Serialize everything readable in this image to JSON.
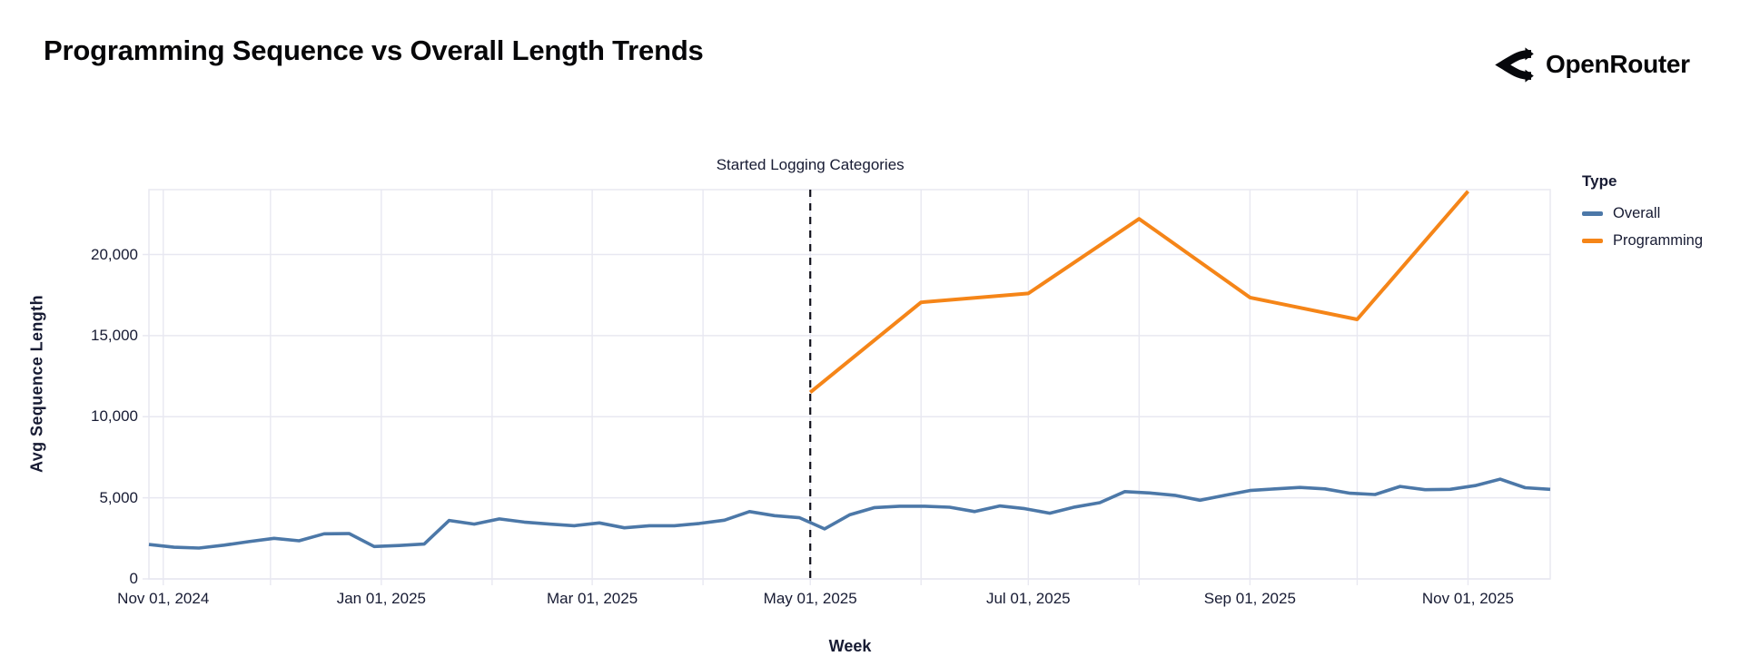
{
  "header": {
    "title": "Programming Sequence vs Overall Length Trends",
    "brand": "OpenRouter"
  },
  "chart_data": {
    "type": "line",
    "title": "Programming Sequence vs Overall Length Trends",
    "xlabel": "Week",
    "ylabel": "Avg Sequence Length",
    "ylim": [
      0,
      24000
    ],
    "x_domain": [
      "2024-10-28",
      "2025-11-24"
    ],
    "grid": true,
    "legend": {
      "title": "Type",
      "position": "top-right"
    },
    "annotation": {
      "text": "Started Logging Categories",
      "date": "2025-05-01"
    },
    "colors": {
      "grid": "#E8E8F1",
      "axis_text": "#171B33",
      "rule": "#12121C",
      "overall": "#4C78A8",
      "programming": "#F58518"
    },
    "y_ticks": [
      {
        "value": 0,
        "label": "0"
      },
      {
        "value": 5000,
        "label": "5,000"
      },
      {
        "value": 10000,
        "label": "10,000"
      },
      {
        "value": 15000,
        "label": "15,000"
      },
      {
        "value": 20000,
        "label": "20,000"
      }
    ],
    "x_ticks": [
      {
        "date": "2024-11-01",
        "label": "Nov 01, 2024"
      },
      {
        "date": "2025-01-01",
        "label": "Jan 01, 2025"
      },
      {
        "date": "2025-03-01",
        "label": "Mar 01, 2025"
      },
      {
        "date": "2025-05-01",
        "label": "May 01, 2025"
      },
      {
        "date": "2025-07-01",
        "label": "Jul 01, 2025"
      },
      {
        "date": "2025-09-01",
        "label": "Sep 01, 2025"
      },
      {
        "date": "2025-11-01",
        "label": "Nov 01, 2025"
      }
    ],
    "series": [
      {
        "name": "Overall",
        "color": "#4C78A8",
        "width": 3.6,
        "points": [
          [
            "2024-10-28",
            2120
          ],
          [
            "2024-11-04",
            1950
          ],
          [
            "2024-11-11",
            1900
          ],
          [
            "2024-11-18",
            2080
          ],
          [
            "2024-11-25",
            2300
          ],
          [
            "2024-12-02",
            2500
          ],
          [
            "2024-12-09",
            2350
          ],
          [
            "2024-12-16",
            2780
          ],
          [
            "2024-12-23",
            2800
          ],
          [
            "2024-12-30",
            2000
          ],
          [
            "2025-01-06",
            2060
          ],
          [
            "2025-01-13",
            2150
          ],
          [
            "2025-01-20",
            3600
          ],
          [
            "2025-01-27",
            3380
          ],
          [
            "2025-02-03",
            3700
          ],
          [
            "2025-02-10",
            3500
          ],
          [
            "2025-02-17",
            3380
          ],
          [
            "2025-02-24",
            3280
          ],
          [
            "2025-03-03",
            3450
          ],
          [
            "2025-03-10",
            3150
          ],
          [
            "2025-03-17",
            3280
          ],
          [
            "2025-03-24",
            3280
          ],
          [
            "2025-03-31",
            3420
          ],
          [
            "2025-04-07",
            3620
          ],
          [
            "2025-04-14",
            4150
          ],
          [
            "2025-04-21",
            3900
          ],
          [
            "2025-04-28",
            3770
          ],
          [
            "2025-05-05",
            3080
          ],
          [
            "2025-05-12",
            3950
          ],
          [
            "2025-05-19",
            4400
          ],
          [
            "2025-05-26",
            4480
          ],
          [
            "2025-06-02",
            4480
          ],
          [
            "2025-06-09",
            4420
          ],
          [
            "2025-06-16",
            4150
          ],
          [
            "2025-06-23",
            4500
          ],
          [
            "2025-06-30",
            4330
          ],
          [
            "2025-07-07",
            4050
          ],
          [
            "2025-07-14",
            4430
          ],
          [
            "2025-07-21",
            4700
          ],
          [
            "2025-07-28",
            5380
          ],
          [
            "2025-08-04",
            5300
          ],
          [
            "2025-08-11",
            5150
          ],
          [
            "2025-08-18",
            4850
          ],
          [
            "2025-08-25",
            5150
          ],
          [
            "2025-09-01",
            5450
          ],
          [
            "2025-09-08",
            5550
          ],
          [
            "2025-09-15",
            5640
          ],
          [
            "2025-09-22",
            5550
          ],
          [
            "2025-09-29",
            5280
          ],
          [
            "2025-10-06",
            5200
          ],
          [
            "2025-10-13",
            5700
          ],
          [
            "2025-10-20",
            5500
          ],
          [
            "2025-10-27",
            5520
          ],
          [
            "2025-11-03",
            5750
          ],
          [
            "2025-11-10",
            6150
          ],
          [
            "2025-11-17",
            5620
          ],
          [
            "2025-11-24",
            5520
          ]
        ]
      },
      {
        "name": "Programming",
        "color": "#F58518",
        "width": 4,
        "points": [
          [
            "2025-05-01",
            11500
          ],
          [
            "2025-06-01",
            17050
          ],
          [
            "2025-07-01",
            17600
          ],
          [
            "2025-08-01",
            22200
          ],
          [
            "2025-09-01",
            17350
          ],
          [
            "2025-10-01",
            16000
          ],
          [
            "2025-11-01",
            23900
          ]
        ]
      }
    ]
  }
}
